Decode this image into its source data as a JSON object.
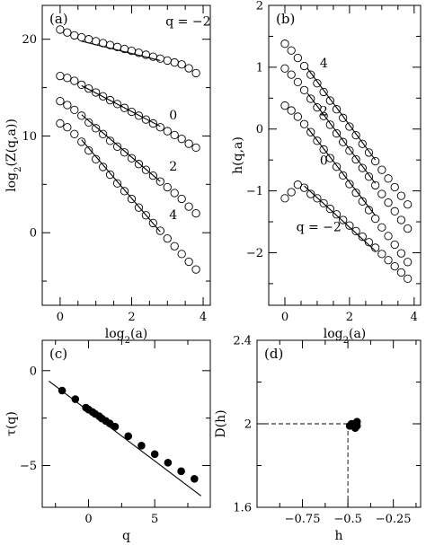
{
  "chart_data": [
    {
      "id": "a",
      "type": "scatter",
      "panel_label": "(a)",
      "xlabel_parts": [
        "log",
        "2",
        "(a)"
      ],
      "ylabel_parts": [
        "log",
        "2",
        "(Z(q,a))"
      ],
      "xlim": [
        -0.5,
        4.2
      ],
      "ylim": [
        -7.5,
        23.5
      ],
      "xticks": [
        0,
        2,
        4
      ],
      "yticks": [
        0,
        10,
        20
      ],
      "xminor": [
        0.5,
        1,
        1.5,
        2.5,
        3,
        3.5
      ],
      "yminor": [
        -5,
        5,
        15
      ],
      "series": [
        {
          "name": "q = −2",
          "x": [
            0,
            0.2,
            0.4,
            0.6,
            0.8,
            1.0,
            1.2,
            1.4,
            1.6,
            1.8,
            2.0,
            2.2,
            2.4,
            2.6,
            2.8,
            3.0,
            3.2,
            3.4,
            3.6,
            3.8
          ],
          "y": [
            21.0,
            20.7,
            20.4,
            20.2,
            20.0,
            19.8,
            19.6,
            19.4,
            19.2,
            19.0,
            18.8,
            18.6,
            18.4,
            18.2,
            18.0,
            17.8,
            17.6,
            17.4,
            17.0,
            16.5
          ],
          "fit": {
            "x": [
              0.6,
              2.8
            ],
            "y": [
              19.8,
              17.8
            ]
          }
        },
        {
          "name": "0",
          "x": [
            0,
            0.2,
            0.4,
            0.6,
            0.8,
            1.0,
            1.2,
            1.4,
            1.6,
            1.8,
            2.0,
            2.2,
            2.4,
            2.6,
            2.8,
            3.0,
            3.2,
            3.4,
            3.6,
            3.8
          ],
          "y": [
            16.2,
            16.0,
            15.7,
            15.3,
            14.9,
            14.5,
            14.1,
            13.7,
            13.3,
            12.9,
            12.5,
            12.1,
            11.7,
            11.3,
            10.9,
            10.5,
            10.1,
            9.7,
            9.2,
            8.8
          ],
          "fit": {
            "x": [
              0.6,
              2.8
            ],
            "y": [
              15.2,
              11.0
            ]
          }
        },
        {
          "name": "2",
          "x": [
            0,
            0.2,
            0.4,
            0.6,
            0.8,
            1.0,
            1.2,
            1.4,
            1.6,
            1.8,
            2.0,
            2.2,
            2.4,
            2.6,
            2.8,
            3.0,
            3.2,
            3.4,
            3.6,
            3.8
          ],
          "y": [
            13.6,
            13.2,
            12.7,
            12.1,
            11.4,
            10.8,
            10.2,
            9.5,
            8.9,
            8.3,
            7.7,
            7.1,
            6.5,
            5.9,
            5.3,
            4.7,
            4.1,
            3.5,
            2.7,
            2.0
          ],
          "fit": {
            "x": [
              0.6,
              2.8
            ],
            "y": [
              12.2,
              5.3
            ]
          }
        },
        {
          "name": "4",
          "x": [
            0,
            0.2,
            0.4,
            0.6,
            0.8,
            1.0,
            1.2,
            1.4,
            1.6,
            1.8,
            2.0,
            2.2,
            2.4,
            2.6,
            2.8,
            3.0,
            3.2,
            3.4,
            3.6,
            3.8
          ],
          "y": [
            11.3,
            10.9,
            10.2,
            9.4,
            8.5,
            7.6,
            6.8,
            6.0,
            5.1,
            4.3,
            3.5,
            2.6,
            1.8,
            1.0,
            0.2,
            -0.6,
            -1.4,
            -2.2,
            -3.0,
            -3.8
          ],
          "fit": {
            "x": [
              0.6,
              2.8
            ],
            "y": [
              9.6,
              0.1
            ]
          }
        }
      ],
      "annotations": [
        {
          "text": "q = −2",
          "x": 2.95,
          "y": 21.4
        },
        {
          "text": "0",
          "x": 3.05,
          "y": 11.7
        },
        {
          "text": "2",
          "x": 3.05,
          "y": 6.4
        },
        {
          "text": "4",
          "x": 3.05,
          "y": 1.4
        }
      ]
    },
    {
      "id": "b",
      "type": "scatter",
      "panel_label": "(b)",
      "xlabel_parts": [
        "log",
        "2",
        "(a)"
      ],
      "ylabel_parts": [
        "h(q,a)"
      ],
      "xlim": [
        -0.5,
        4.2
      ],
      "ylim": [
        -2.85,
        2.0
      ],
      "xticks": [
        0,
        2,
        4
      ],
      "yticks": [
        -2,
        -1,
        0,
        1,
        2
      ],
      "xminor": [
        0.5,
        1,
        1.5,
        2.5,
        3,
        3.5
      ],
      "yminor": [
        -2.5,
        -1.5,
        -0.5,
        0.5,
        1.5
      ],
      "series": [
        {
          "name": "4",
          "x": [
            0,
            0.2,
            0.4,
            0.6,
            0.8,
            1.0,
            1.2,
            1.4,
            1.6,
            1.8,
            2.0,
            2.2,
            2.4,
            2.6,
            2.8,
            3.0,
            3.2,
            3.4,
            3.6,
            3.8
          ],
          "y": [
            1.38,
            1.27,
            1.15,
            1.02,
            0.88,
            0.74,
            0.6,
            0.46,
            0.32,
            0.18,
            0.04,
            -0.1,
            -0.24,
            -0.38,
            -0.52,
            -0.66,
            -0.8,
            -0.94,
            -1.08,
            -1.22
          ],
          "fit": {
            "x": [
              0.7,
              2.8
            ],
            "y": [
              0.98,
              -0.5
            ]
          }
        },
        {
          "name": "2",
          "x": [
            0,
            0.2,
            0.4,
            0.6,
            0.8,
            1.0,
            1.2,
            1.4,
            1.6,
            1.8,
            2.0,
            2.2,
            2.4,
            2.6,
            2.8,
            3.0,
            3.2,
            3.4,
            3.6,
            3.8
          ],
          "y": [
            0.98,
            0.88,
            0.76,
            0.63,
            0.49,
            0.35,
            0.21,
            0.07,
            -0.07,
            -0.21,
            -0.35,
            -0.49,
            -0.63,
            -0.77,
            -0.91,
            -1.05,
            -1.19,
            -1.33,
            -1.47,
            -1.61
          ],
          "fit": {
            "x": [
              0.7,
              2.8
            ],
            "y": [
              0.58,
              -0.88
            ]
          }
        },
        {
          "name": "0",
          "x": [
            0,
            0.2,
            0.4,
            0.6,
            0.8,
            1.0,
            1.2,
            1.4,
            1.6,
            1.8,
            2.0,
            2.2,
            2.4,
            2.6,
            2.8,
            3.0,
            3.2,
            3.4,
            3.6,
            3.8
          ],
          "y": [
            0.38,
            0.3,
            0.2,
            0.08,
            -0.05,
            -0.19,
            -0.33,
            -0.47,
            -0.61,
            -0.75,
            -0.89,
            -1.03,
            -1.17,
            -1.31,
            -1.45,
            -1.59,
            -1.73,
            -1.87,
            -2.01,
            -2.15
          ],
          "fit": {
            "x": [
              0.7,
              2.8
            ],
            "y": [
              0.02,
              -1.4
            ]
          }
        },
        {
          "name": "q = −2",
          "x": [
            0,
            0.2,
            0.4,
            0.6,
            0.8,
            1.0,
            1.2,
            1.4,
            1.6,
            1.8,
            2.0,
            2.2,
            2.4,
            2.6,
            2.8,
            3.0,
            3.2,
            3.4,
            3.6,
            3.8
          ],
          "y": [
            -1.12,
            -1.02,
            -0.9,
            -0.95,
            -1.05,
            -1.12,
            -1.2,
            -1.29,
            -1.38,
            -1.47,
            -1.56,
            -1.65,
            -1.74,
            -1.83,
            -1.92,
            -2.02,
            -2.12,
            -2.22,
            -2.32,
            -2.42
          ],
          "fit": {
            "x": [
              0.6,
              2.8
            ],
            "y": [
              -0.92,
              -1.97
            ]
          }
        }
      ],
      "annotations": [
        {
          "text": "4",
          "x": 1.08,
          "y": 1.0
        },
        {
          "text": "2",
          "x": 1.08,
          "y": 0.22
        },
        {
          "text": "0",
          "x": 1.08,
          "y": -0.58
        },
        {
          "text": "q = −2",
          "x": 0.35,
          "y": -1.65
        }
      ]
    },
    {
      "id": "c",
      "type": "scatter",
      "panel_label": "(c)",
      "xlabel_parts": [
        "q"
      ],
      "ylabel_parts": [
        "τ(q)"
      ],
      "xlim": [
        -3.5,
        9.2
      ],
      "ylim": [
        -7.2,
        1.6
      ],
      "xticks": [
        0,
        5
      ],
      "yticks": [
        -5,
        0
      ],
      "xminor": [
        -2.5,
        2.5,
        7.5
      ],
      "yminor": [
        -2.5
      ],
      "x": [
        -2,
        -1,
        -0.2,
        0,
        0.3,
        0.5,
        0.8,
        1.0,
        1.3,
        1.6,
        2.0,
        3.0,
        4.0,
        5.0,
        6.0,
        7.0,
        8.0
      ],
      "y": [
        -1.05,
        -1.5,
        -1.95,
        -2.05,
        -2.18,
        -2.28,
        -2.4,
        -2.52,
        -2.65,
        -2.78,
        -2.95,
        -3.45,
        -3.95,
        -4.4,
        -4.85,
        -5.3,
        -5.7
      ],
      "fit": {
        "x": [
          -3,
          8.5
        ],
        "y": [
          -0.55,
          -6.6
        ]
      }
    },
    {
      "id": "d",
      "type": "scatter",
      "panel_label": "(d)",
      "xlabel_parts": [
        "h"
      ],
      "ylabel_parts": [
        "D(h)"
      ],
      "xlim": [
        -1.0,
        -0.1
      ],
      "ylim": [
        1.6,
        2.4
      ],
      "xticks": [
        -0.75,
        -0.5,
        -0.25
      ],
      "yticks": [
        1.6,
        2,
        2.4
      ],
      "xticklabels": [
        "−0.75",
        "−0.5",
        "−0.25"
      ],
      "yticklabels": [
        "1.6",
        "2",
        "2.4"
      ],
      "xminor": [
        -0.875,
        -0.625,
        -0.375,
        -0.125
      ],
      "yminor": [
        1.8,
        2.2
      ],
      "x": [
        -0.49,
        -0.48,
        -0.47,
        -0.46,
        -0.45,
        -0.45,
        -0.46
      ],
      "y": [
        1.99,
        2.0,
        1.99,
        1.98,
        1.99,
        2.01,
        2.0
      ],
      "guide": {
        "x": -0.5,
        "y": 2.0
      }
    }
  ]
}
